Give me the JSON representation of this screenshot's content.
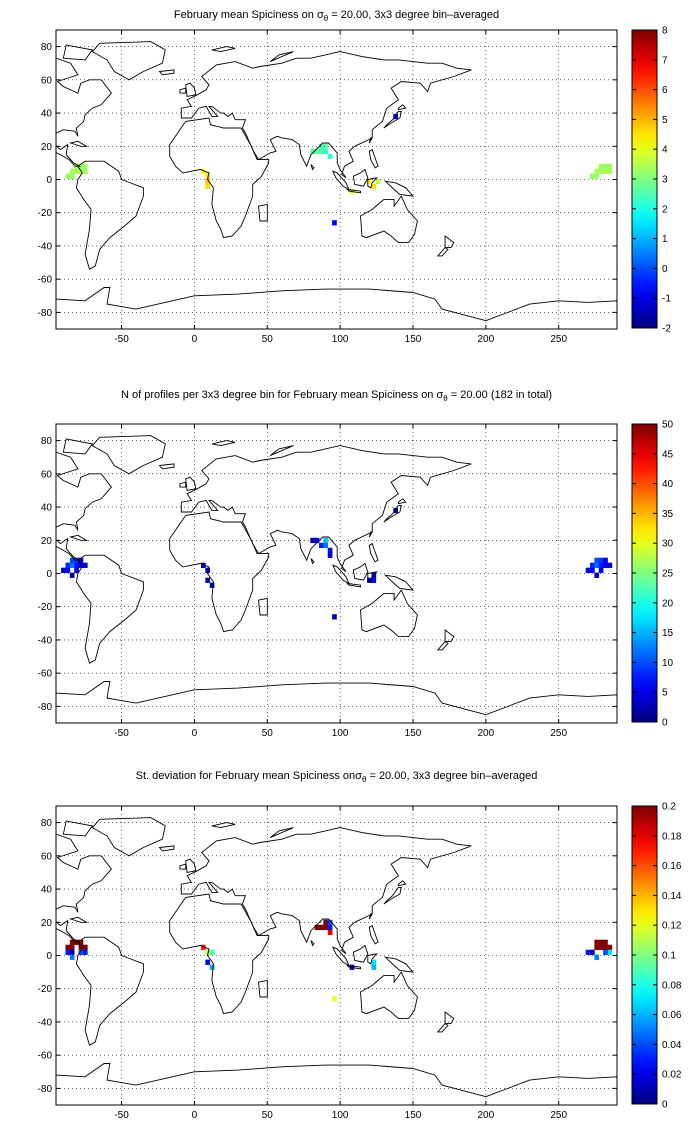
{
  "chart_data": [
    {
      "type": "heatmap",
      "title_parts": {
        "before": "February mean Spiciness on ",
        "sigma": "σ",
        "sub": "θ",
        "after": " = 20.00, 3x3 degree bin–averaged"
      },
      "xlim": [
        -95,
        290
      ],
      "ylim": [
        -90,
        90
      ],
      "xticks": [
        -50,
        0,
        50,
        100,
        150,
        200,
        250
      ],
      "yticks": [
        -80,
        -60,
        -40,
        -20,
        0,
        20,
        40,
        60,
        80
      ],
      "grid": true,
      "colorbar": {
        "min": -2,
        "max": 8,
        "ticks": [
          -2,
          -1,
          0,
          1,
          2,
          3,
          4,
          5,
          6,
          7,
          8
        ]
      },
      "cells": [
        [
          -87,
          2,
          3.3
        ],
        [
          -84,
          2,
          3.2
        ],
        [
          -84,
          5,
          3.4
        ],
        [
          -81,
          5,
          3.3
        ],
        [
          -78,
          5,
          3.5
        ],
        [
          -81,
          8,
          3.4
        ],
        [
          -78,
          8,
          3.2
        ],
        [
          -75,
          8,
          3.3
        ],
        [
          -75,
          5,
          3.3
        ],
        [
          6,
          5,
          4.3
        ],
        [
          9,
          2,
          4.5
        ],
        [
          9,
          -1,
          4.8
        ],
        [
          9,
          -4,
          4.6
        ],
        [
          81,
          17,
          2.6
        ],
        [
          84,
          17,
          2.8
        ],
        [
          87,
          17,
          2.5
        ],
        [
          90,
          17,
          2.3
        ],
        [
          87,
          20,
          2.4
        ],
        [
          90,
          20,
          2.7
        ],
        [
          93,
          14,
          2.2
        ],
        [
          108,
          -7,
          3.8
        ],
        [
          120,
          -1,
          4.2
        ],
        [
          123,
          -4,
          4.6
        ],
        [
          126,
          -1,
          3.6
        ],
        [
          138,
          38,
          -1.0
        ],
        [
          96,
          -26,
          -0.8
        ],
        [
          273,
          2,
          3.3
        ],
        [
          276,
          2,
          3.2
        ],
        [
          276,
          5,
          3.4
        ],
        [
          279,
          5,
          3.3
        ],
        [
          282,
          5,
          3.5
        ],
        [
          279,
          8,
          3.4
        ],
        [
          282,
          8,
          3.2
        ],
        [
          285,
          8,
          3.3
        ],
        [
          285,
          5,
          3.3
        ]
      ]
    },
    {
      "type": "heatmap",
      "title_parts": {
        "before": "N of profiles per 3x3 degree bin for February mean Spiciness on ",
        "sigma": "σ",
        "sub": "θ",
        "after": " = 20.00 (182 in total)"
      },
      "xlim": [
        -95,
        290
      ],
      "ylim": [
        -90,
        90
      ],
      "xticks": [
        -50,
        0,
        50,
        100,
        150,
        200,
        250
      ],
      "yticks": [
        -80,
        -60,
        -40,
        -20,
        0,
        20,
        40,
        60,
        80
      ],
      "grid": true,
      "colorbar": {
        "min": 0,
        "max": 50,
        "ticks": [
          0,
          5,
          10,
          15,
          20,
          25,
          30,
          35,
          40,
          45,
          50
        ]
      },
      "cells": [
        [
          -90,
          2,
          4
        ],
        [
          -87,
          2,
          6
        ],
        [
          -87,
          5,
          8
        ],
        [
          -84,
          5,
          12
        ],
        [
          -84,
          8,
          10
        ],
        [
          -81,
          5,
          7
        ],
        [
          -81,
          8,
          9
        ],
        [
          -78,
          5,
          6
        ],
        [
          -78,
          8,
          5
        ],
        [
          -75,
          5,
          4
        ],
        [
          -84,
          -1,
          3
        ],
        [
          -81,
          2,
          5
        ],
        [
          6,
          5,
          3
        ],
        [
          9,
          2,
          4
        ],
        [
          9,
          -4,
          2
        ],
        [
          12,
          -7,
          3
        ],
        [
          81,
          20,
          3
        ],
        [
          84,
          20,
          5
        ],
        [
          87,
          17,
          8
        ],
        [
          90,
          20,
          16
        ],
        [
          90,
          17,
          12
        ],
        [
          93,
          14,
          6
        ],
        [
          93,
          11,
          4
        ],
        [
          123,
          -1,
          4
        ],
        [
          123,
          -4,
          6
        ],
        [
          120,
          -4,
          3
        ],
        [
          138,
          38,
          2
        ],
        [
          96,
          -26,
          2
        ],
        [
          270,
          2,
          4
        ],
        [
          273,
          2,
          6
        ],
        [
          273,
          5,
          8
        ],
        [
          276,
          5,
          12
        ],
        [
          276,
          8,
          10
        ],
        [
          279,
          5,
          7
        ],
        [
          279,
          8,
          9
        ],
        [
          282,
          5,
          6
        ],
        [
          282,
          8,
          5
        ],
        [
          285,
          5,
          4
        ],
        [
          276,
          -1,
          3
        ],
        [
          279,
          2,
          5
        ]
      ]
    },
    {
      "type": "heatmap",
      "title_parts": {
        "before": "St. deviation for February mean Spiciness on",
        "sigma": "σ",
        "sub": "θ",
        "after": " = 20.00, 3x3 degree bin–averaged"
      },
      "xlim": [
        -95,
        290
      ],
      "ylim": [
        -90,
        90
      ],
      "xticks": [
        -50,
        0,
        50,
        100,
        150,
        200,
        250
      ],
      "yticks": [
        -80,
        -60,
        -40,
        -20,
        0,
        20,
        40,
        60,
        80
      ],
      "grid": true,
      "colorbar": {
        "min": 0,
        "max": 0.2,
        "ticks": [
          0,
          0.02,
          0.04,
          0.06,
          0.08,
          0.1,
          0.12,
          0.14,
          0.16,
          0.18,
          0.2
        ]
      },
      "cells": [
        [
          -87,
          5,
          0.2
        ],
        [
          -84,
          5,
          0.2
        ],
        [
          -84,
          8,
          0.2
        ],
        [
          -81,
          8,
          0.2
        ],
        [
          -78,
          8,
          0.2
        ],
        [
          -78,
          5,
          0.2
        ],
        [
          -75,
          5,
          0.2
        ],
        [
          -87,
          2,
          0.03
        ],
        [
          -84,
          2,
          0.01
        ],
        [
          -78,
          2,
          0.04
        ],
        [
          -75,
          2,
          0.03
        ],
        [
          -84,
          -1,
          0.05
        ],
        [
          6,
          5,
          0.17
        ],
        [
          9,
          2,
          0.11
        ],
        [
          12,
          2,
          0.09
        ],
        [
          9,
          -4,
          0.02
        ],
        [
          12,
          -7,
          0.06
        ],
        [
          84,
          17,
          0.2
        ],
        [
          87,
          17,
          0.2
        ],
        [
          90,
          17,
          0.2
        ],
        [
          90,
          20,
          0.2
        ],
        [
          93,
          20,
          0.04
        ],
        [
          93,
          17,
          0.03
        ],
        [
          93,
          14,
          0.18
        ],
        [
          108,
          -7,
          0.02
        ],
        [
          123,
          -4,
          0.07
        ],
        [
          123,
          -7,
          0.06
        ],
        [
          96,
          -26,
          0.12
        ],
        [
          270,
          2,
          0.03
        ],
        [
          273,
          2,
          0.01
        ],
        [
          279,
          5,
          0.2
        ],
        [
          276,
          5,
          0.2
        ],
        [
          276,
          8,
          0.2
        ],
        [
          279,
          8,
          0.2
        ],
        [
          282,
          8,
          0.2
        ],
        [
          282,
          5,
          0.2
        ],
        [
          285,
          5,
          0.2
        ],
        [
          285,
          2,
          0.07
        ],
        [
          282,
          2,
          0.04
        ],
        [
          276,
          -1,
          0.05
        ]
      ]
    }
  ]
}
